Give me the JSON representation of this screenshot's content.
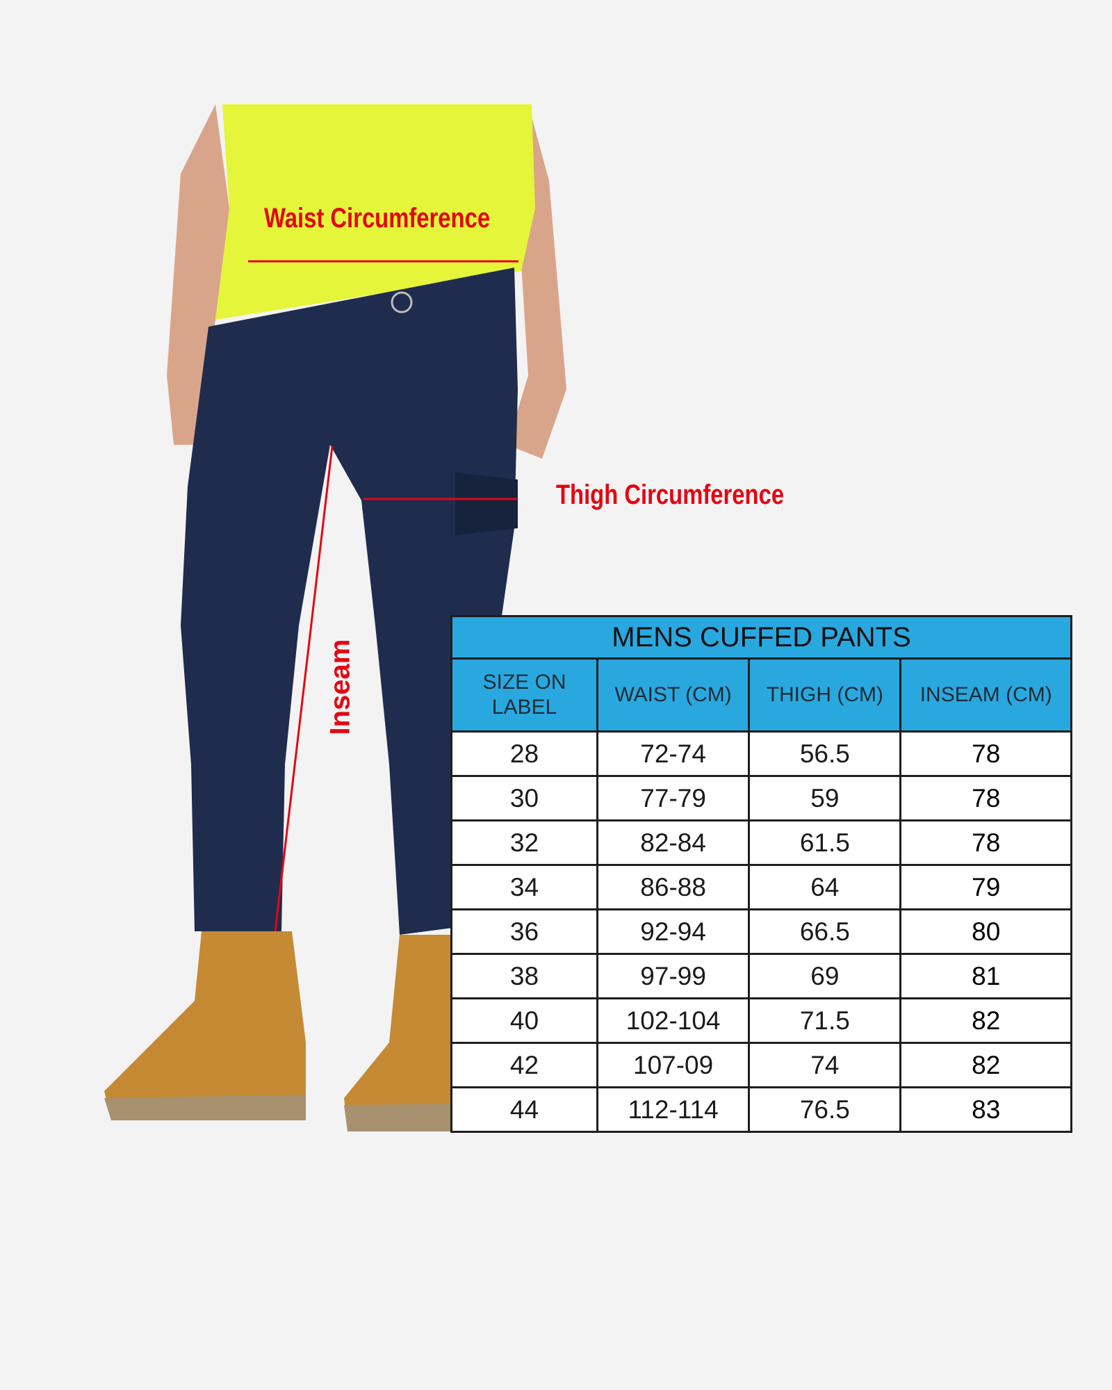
{
  "annotations": {
    "waist": "Waist Circumference",
    "thigh": "Thigh Circumference",
    "inseam": "Inseam"
  },
  "colors": {
    "annotation": "#e30613",
    "header": "#29a8e0",
    "shirt": "#e4f53a",
    "pants": "#1f2c4d",
    "boots": "#c58a33"
  },
  "table": {
    "title": "MENS CUFFED PANTS",
    "headers": [
      "SIZE ON LABEL",
      "WAIST (CM)",
      "THIGH (CM)",
      "INSEAM (CM)"
    ],
    "rows": [
      [
        "28",
        "72-74",
        "56.5",
        "78"
      ],
      [
        "30",
        "77-79",
        "59",
        "78"
      ],
      [
        "32",
        "82-84",
        "61.5",
        "78"
      ],
      [
        "34",
        "86-88",
        "64",
        "79"
      ],
      [
        "36",
        "92-94",
        "66.5",
        "80"
      ],
      [
        "38",
        "97-99",
        "69",
        "81"
      ],
      [
        "40",
        "102-104",
        "71.5",
        "82"
      ],
      [
        "42",
        "107-09",
        "74",
        "82"
      ],
      [
        "44",
        "112-114",
        "76.5",
        "83"
      ]
    ]
  }
}
